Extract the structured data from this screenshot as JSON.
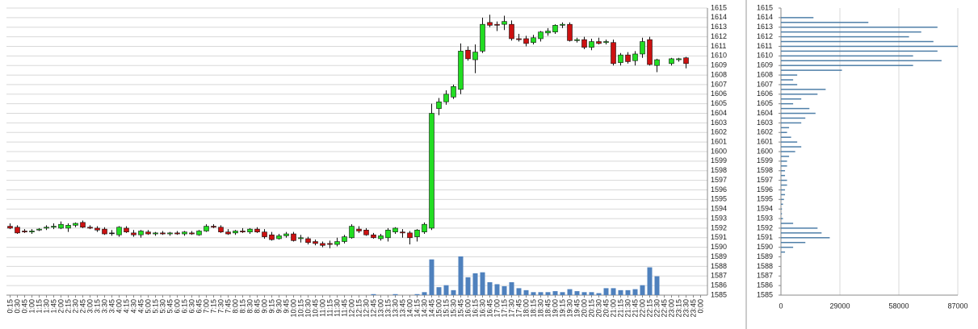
{
  "chart_data": [
    {
      "type": "candlestick",
      "categories": [
        "0:15",
        "0:30",
        "0:45",
        "1:00",
        "1:15",
        "1:30",
        "1:45",
        "2:00",
        "2:15",
        "2:30",
        "2:45",
        "3:00",
        "3:15",
        "3:30",
        "3:45",
        "4:00",
        "4:15",
        "4:30",
        "4:45",
        "5:00",
        "5:15",
        "5:30",
        "5:45",
        "6:00",
        "6:15",
        "6:30",
        "6:45",
        "7:00",
        "7:15",
        "7:30",
        "7:45",
        "8:00",
        "8:15",
        "8:30",
        "8:45",
        "9:00",
        "9:15",
        "9:30",
        "9:45",
        "10:00",
        "10:15",
        "10:30",
        "10:45",
        "11:00",
        "11:15",
        "11:30",
        "11:45",
        "12:00",
        "12:15",
        "12:30",
        "12:45",
        "13:00",
        "13:15",
        "13:30",
        "13:45",
        "14:00",
        "14:15",
        "14:30",
        "14:45",
        "15:00",
        "15:15",
        "15:30",
        "15:45",
        "16:00",
        "16:15",
        "16:30",
        "16:45",
        "17:00",
        "17:15",
        "17:30",
        "17:45",
        "18:00",
        "18:15",
        "18:30",
        "18:45",
        "19:00",
        "19:15",
        "19:30",
        "19:45",
        "20:00",
        "20:15",
        "20:30",
        "20:45",
        "21:00",
        "21:15",
        "21:30",
        "21:45",
        "22:00",
        "22:15",
        "22:30",
        "22:45",
        "23:00",
        "23:15",
        "23:30",
        "23:45",
        "0:00"
      ],
      "open": [
        1592.2,
        1592.1,
        1591.7,
        1591.6,
        1591.8,
        1592.0,
        1592.1,
        1592.0,
        1592.0,
        1592.3,
        1592.6,
        1592.1,
        1592.0,
        1591.9,
        1591.5,
        1591.3,
        1592.0,
        1591.5,
        1591.3,
        1591.6,
        1591.4,
        1591.5,
        1591.4,
        1591.5,
        1591.4,
        1591.5,
        1591.3,
        1591.7,
        1592.2,
        1592.1,
        1591.6,
        1591.5,
        1591.7,
        1591.6,
        1591.9,
        1591.6,
        1591.3,
        1590.9,
        1591.2,
        1591.4,
        1590.9,
        1590.9,
        1590.6,
        1590.4,
        1590.4,
        1590.3,
        1590.6,
        1591.0,
        1591.9,
        1591.8,
        1591.3,
        1590.9,
        1591.0,
        1591.6,
        1591.6,
        1591.5,
        1591.1,
        1591.6,
        1592.0,
        1604.5,
        1605.2,
        1605.7,
        1606.5,
        1610.6,
        1609.6,
        1610.5,
        1613.5,
        1613.3,
        1613.3,
        1613.3,
        1611.8,
        1611.8,
        1611.4,
        1611.8,
        1612.4,
        1612.5,
        1613.2,
        1613.3,
        1611.6,
        1611.7,
        1610.9,
        1611.5,
        1611.4,
        1611.4,
        1609.3,
        1610.1,
        1609.5,
        1610.2,
        1611.7,
        1609.0,
        null,
        1609.2,
        1609.6,
        1609.8,
        null,
        null
      ],
      "high": [
        1592.5,
        1592.3,
        1591.9,
        1591.9,
        1592.0,
        1592.3,
        1592.5,
        1592.7,
        1592.5,
        1592.6,
        1592.8,
        1592.3,
        1592.2,
        1592.1,
        1591.8,
        1592.2,
        1592.2,
        1591.8,
        1591.8,
        1591.8,
        1591.6,
        1591.7,
        1591.6,
        1591.7,
        1591.7,
        1591.7,
        1591.8,
        1592.4,
        1592.4,
        1592.3,
        1591.9,
        1591.8,
        1592.0,
        1592.0,
        1592.1,
        1591.9,
        1591.6,
        1591.4,
        1591.6,
        1591.6,
        1591.3,
        1591.1,
        1590.8,
        1590.6,
        1590.7,
        1591.0,
        1591.3,
        1592.4,
        1592.2,
        1592.0,
        1591.5,
        1591.4,
        1592.0,
        1592.1,
        1591.9,
        1591.7,
        1591.9,
        1592.6,
        1605.0,
        1605.6,
        1606.4,
        1607.0,
        1611.3,
        1611.0,
        1611.2,
        1614.0,
        1614.3,
        1613.6,
        1614.2,
        1613.7,
        1612.3,
        1612.1,
        1612.2,
        1612.6,
        1612.9,
        1613.3,
        1613.5,
        1613.5,
        1611.9,
        1612.0,
        1611.8,
        1611.9,
        1611.7,
        1611.7,
        1610.3,
        1610.4,
        1610.5,
        1611.9,
        1612.0,
        1609.7,
        null,
        1609.8,
        1609.8,
        1609.9,
        null,
        null
      ],
      "low": [
        1591.9,
        1591.4,
        1591.5,
        1591.4,
        1591.7,
        1591.8,
        1591.9,
        1591.9,
        1591.6,
        1592.1,
        1592.0,
        1591.9,
        1591.6,
        1591.3,
        1591.2,
        1591.1,
        1591.5,
        1591.1,
        1591.0,
        1591.3,
        1591.2,
        1591.3,
        1591.2,
        1591.3,
        1591.2,
        1591.3,
        1591.2,
        1591.6,
        1592.0,
        1591.5,
        1591.3,
        1591.3,
        1591.5,
        1591.4,
        1591.5,
        1590.9,
        1590.7,
        1590.8,
        1591.0,
        1590.6,
        1590.5,
        1590.3,
        1590.2,
        1590.0,
        1589.9,
        1590.1,
        1590.4,
        1590.9,
        1591.5,
        1591.2,
        1590.9,
        1590.7,
        1590.6,
        1591.4,
        1591.0,
        1590.3,
        1590.6,
        1591.4,
        1591.8,
        1603.8,
        1604.9,
        1605.5,
        1606.0,
        1609.5,
        1608.2,
        1610.3,
        1613.0,
        1612.6,
        1612.7,
        1611.6,
        1611.5,
        1611.0,
        1611.2,
        1611.5,
        1612.1,
        1612.3,
        1612.9,
        1611.5,
        1611.4,
        1610.7,
        1610.6,
        1611.2,
        1611.2,
        1609.0,
        1609.0,
        1609.2,
        1609.0,
        1609.8,
        1609.0,
        1608.3,
        null,
        1609.0,
        1609.4,
        1608.7,
        null,
        null
      ],
      "close": [
        1592.0,
        1591.5,
        1591.6,
        1591.7,
        1591.9,
        1592.1,
        1592.2,
        1592.4,
        1592.3,
        1592.5,
        1592.1,
        1592.0,
        1591.8,
        1591.4,
        1591.5,
        1592.1,
        1591.6,
        1591.3,
        1591.7,
        1591.4,
        1591.5,
        1591.4,
        1591.5,
        1591.4,
        1591.6,
        1591.4,
        1591.7,
        1592.2,
        1592.1,
        1591.6,
        1591.4,
        1591.7,
        1591.6,
        1591.9,
        1591.6,
        1591.1,
        1590.8,
        1591.2,
        1591.4,
        1590.7,
        1591.0,
        1590.5,
        1590.4,
        1590.2,
        1590.3,
        1590.6,
        1591.1,
        1592.2,
        1591.7,
        1591.3,
        1591.0,
        1591.2,
        1591.8,
        1592.0,
        1591.5,
        1591.0,
        1591.8,
        1592.4,
        1604.0,
        1605.2,
        1606.0,
        1606.8,
        1610.5,
        1609.7,
        1610.4,
        1613.3,
        1613.2,
        1613.2,
        1613.6,
        1611.8,
        1611.7,
        1611.3,
        1611.9,
        1612.5,
        1612.6,
        1613.2,
        1613.3,
        1611.6,
        1611.7,
        1610.9,
        1611.5,
        1611.3,
        1611.5,
        1609.2,
        1610.1,
        1609.4,
        1610.2,
        1611.5,
        1609.1,
        1609.6,
        null,
        1609.7,
        1609.7,
        1609.2,
        null,
        null
      ],
      "volume": [
        0,
        0,
        0,
        0,
        0,
        0,
        0,
        0,
        0,
        0,
        0,
        0,
        0,
        0,
        0,
        0,
        0,
        0,
        0,
        0,
        0,
        0,
        0,
        0,
        0,
        0,
        0,
        0,
        0,
        0,
        0,
        0,
        0,
        0,
        0,
        0,
        0,
        0,
        0,
        0,
        0,
        0,
        0,
        0,
        0,
        0,
        0,
        0,
        0,
        0,
        1,
        0,
        0,
        1,
        0,
        0,
        1,
        3,
        36,
        8,
        10,
        5,
        39,
        18,
        22,
        23,
        13,
        11,
        9,
        13,
        7,
        5,
        3,
        3,
        3,
        4,
        3,
        6,
        4,
        3,
        3,
        2,
        7,
        7,
        5,
        5,
        6,
        10,
        28,
        19,
        null,
        0,
        0,
        0,
        null,
        null
      ],
      "ylim": [
        1585,
        1615
      ],
      "yticks": [
        1585,
        1586,
        1587,
        1588,
        1589,
        1590,
        1591,
        1592,
        1593,
        1594,
        1595,
        1596,
        1597,
        1598,
        1599,
        1600,
        1601,
        1602,
        1603,
        1604,
        1605,
        1606,
        1607,
        1608,
        1609,
        1610,
        1611,
        1612,
        1613,
        1614,
        1615
      ],
      "grid": true,
      "up_color": "#22dd22",
      "down_color": "#cc1111",
      "volume_color": "#4f81bd"
    },
    {
      "type": "hbar",
      "y": [
        1589.5,
        1590,
        1590.5,
        1591,
        1591.5,
        1592,
        1592.5,
        1593,
        1593.5,
        1594,
        1594.5,
        1595,
        1595.5,
        1596,
        1596.5,
        1597,
        1597.5,
        1598,
        1598.5,
        1599,
        1599.5,
        1600,
        1600.5,
        1601,
        1601.5,
        1602,
        1602.5,
        1603,
        1603.5,
        1604,
        1604.5,
        1605,
        1605.5,
        1606,
        1606.5,
        1607,
        1607.5,
        1608,
        1608.5,
        1609,
        1609.5,
        1610,
        1610.5,
        1611,
        1611.5,
        1612,
        1612.5,
        1613,
        1613.5,
        1614
      ],
      "values": [
        2000,
        6000,
        12000,
        24000,
        20000,
        18000,
        6000,
        1000,
        500,
        500,
        1000,
        1500,
        2000,
        2000,
        3000,
        3000,
        2000,
        2000,
        3000,
        3000,
        4000,
        7000,
        10000,
        8000,
        5000,
        3000,
        4000,
        10000,
        12000,
        17000,
        14000,
        6000,
        10000,
        18000,
        22000,
        8000,
        6000,
        8000,
        30000,
        65000,
        79000,
        65000,
        77000,
        87000,
        75000,
        63000,
        69000,
        77000,
        43000,
        16000
      ],
      "xlim": [
        0,
        87000
      ],
      "xticks": [
        0,
        29000,
        58000,
        87000
      ],
      "ylim": [
        1585,
        1615
      ],
      "yticks": [
        1585,
        1586,
        1587,
        1588,
        1589,
        1590,
        1591,
        1592,
        1593,
        1594,
        1595,
        1596,
        1597,
        1598,
        1599,
        1600,
        1601,
        1602,
        1603,
        1604,
        1605,
        1606,
        1607,
        1608,
        1609,
        1610,
        1611,
        1612,
        1613,
        1614,
        1615
      ],
      "grid": true,
      "color": "#4f7fa8"
    }
  ]
}
